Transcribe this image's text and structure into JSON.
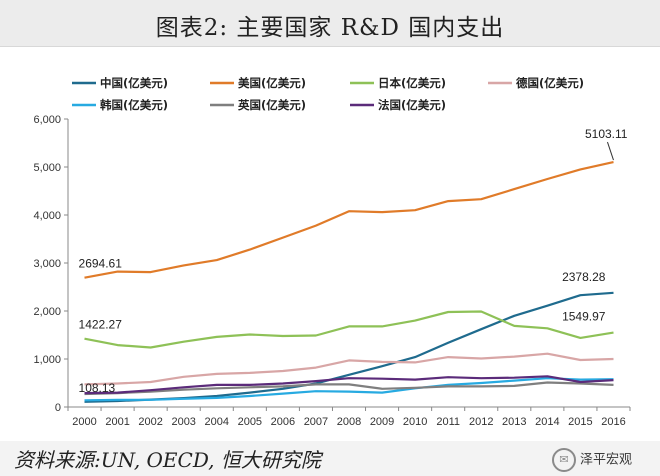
{
  "title": "图表2:   主要国家 R&D 国内支出",
  "source": "资料来源:UN, OECD, 恒大研究院",
  "watermark": "泽平宏观",
  "colors": {
    "china": "#1f6b8e",
    "usa": "#e07b29",
    "japan": "#8ec157",
    "germany": "#d8a6a6",
    "korea": "#27aae1",
    "uk": "#7f7f7f",
    "france": "#5b2b7a"
  },
  "chart_data": {
    "type": "line",
    "title": "主要国家 R&D 国内支出",
    "xlabel": "",
    "ylabel": "",
    "ylim": [
      0,
      6000
    ],
    "yticks": [
      "0",
      "1,000",
      "2,000",
      "3,000",
      "4,000",
      "5,000",
      "6,000"
    ],
    "x": [
      "2000",
      "2001",
      "2002",
      "2003",
      "2004",
      "2005",
      "2006",
      "2007",
      "2008",
      "2009",
      "2010",
      "2011",
      "2012",
      "2013",
      "2014",
      "2015",
      "2016"
    ],
    "legend_position": "top",
    "series": [
      {
        "key": "china",
        "name": "中国(亿美元)",
        "values": [
          108.13,
          125,
          155,
          185,
          230,
          300,
          380,
          490,
          670,
          850,
          1040,
          1340,
          1620,
          1900,
          2110,
          2330,
          2378.28
        ]
      },
      {
        "key": "usa",
        "name": "美国(亿美元)",
        "values": [
          2694.61,
          2820,
          2810,
          2950,
          3060,
          3280,
          3530,
          3780,
          4080,
          4060,
          4100,
          4290,
          4330,
          4540,
          4750,
          4950,
          5103.11
        ]
      },
      {
        "key": "japan",
        "name": "日本(亿美元)",
        "values": [
          1422.27,
          1290,
          1240,
          1360,
          1460,
          1510,
          1480,
          1490,
          1680,
          1680,
          1800,
          1980,
          1990,
          1690,
          1640,
          1440,
          1549.97
        ]
      },
      {
        "key": "germany",
        "name": "德国(亿美元)",
        "values": [
          470,
          490,
          520,
          630,
          690,
          710,
          750,
          820,
          970,
          940,
          930,
          1040,
          1010,
          1050,
          1110,
          980,
          1000
        ]
      },
      {
        "key": "korea",
        "name": "韩国(亿美元)",
        "values": [
          140,
          150,
          150,
          170,
          190,
          230,
          280,
          330,
          320,
          300,
          390,
          460,
          500,
          550,
          600,
          570,
          580
        ]
      },
      {
        "key": "uk",
        "name": "英国(亿美元)",
        "values": [
          270,
          290,
          320,
          360,
          390,
          410,
          430,
          470,
          470,
          380,
          400,
          430,
          430,
          440,
          510,
          490,
          460
        ]
      },
      {
        "key": "france",
        "name": "法国(亿美元)",
        "values": [
          290,
          300,
          350,
          410,
          460,
          460,
          490,
          540,
          600,
          590,
          570,
          620,
          600,
          610,
          640,
          520,
          560
        ]
      }
    ],
    "annotations": [
      {
        "series": "usa",
        "index": 0,
        "text": "2694.61",
        "position": "above"
      },
      {
        "series": "usa",
        "index": 16,
        "text": "5103.11",
        "position": "above-left"
      },
      {
        "series": "japan",
        "index": 0,
        "text": "1422.27",
        "position": "above"
      },
      {
        "series": "japan",
        "index": 16,
        "text": "1549.97",
        "position": "above-left"
      },
      {
        "series": "china",
        "index": 0,
        "text": "108.13",
        "position": "above"
      },
      {
        "series": "china",
        "index": 16,
        "text": "2378.28",
        "position": "above-left"
      }
    ]
  }
}
